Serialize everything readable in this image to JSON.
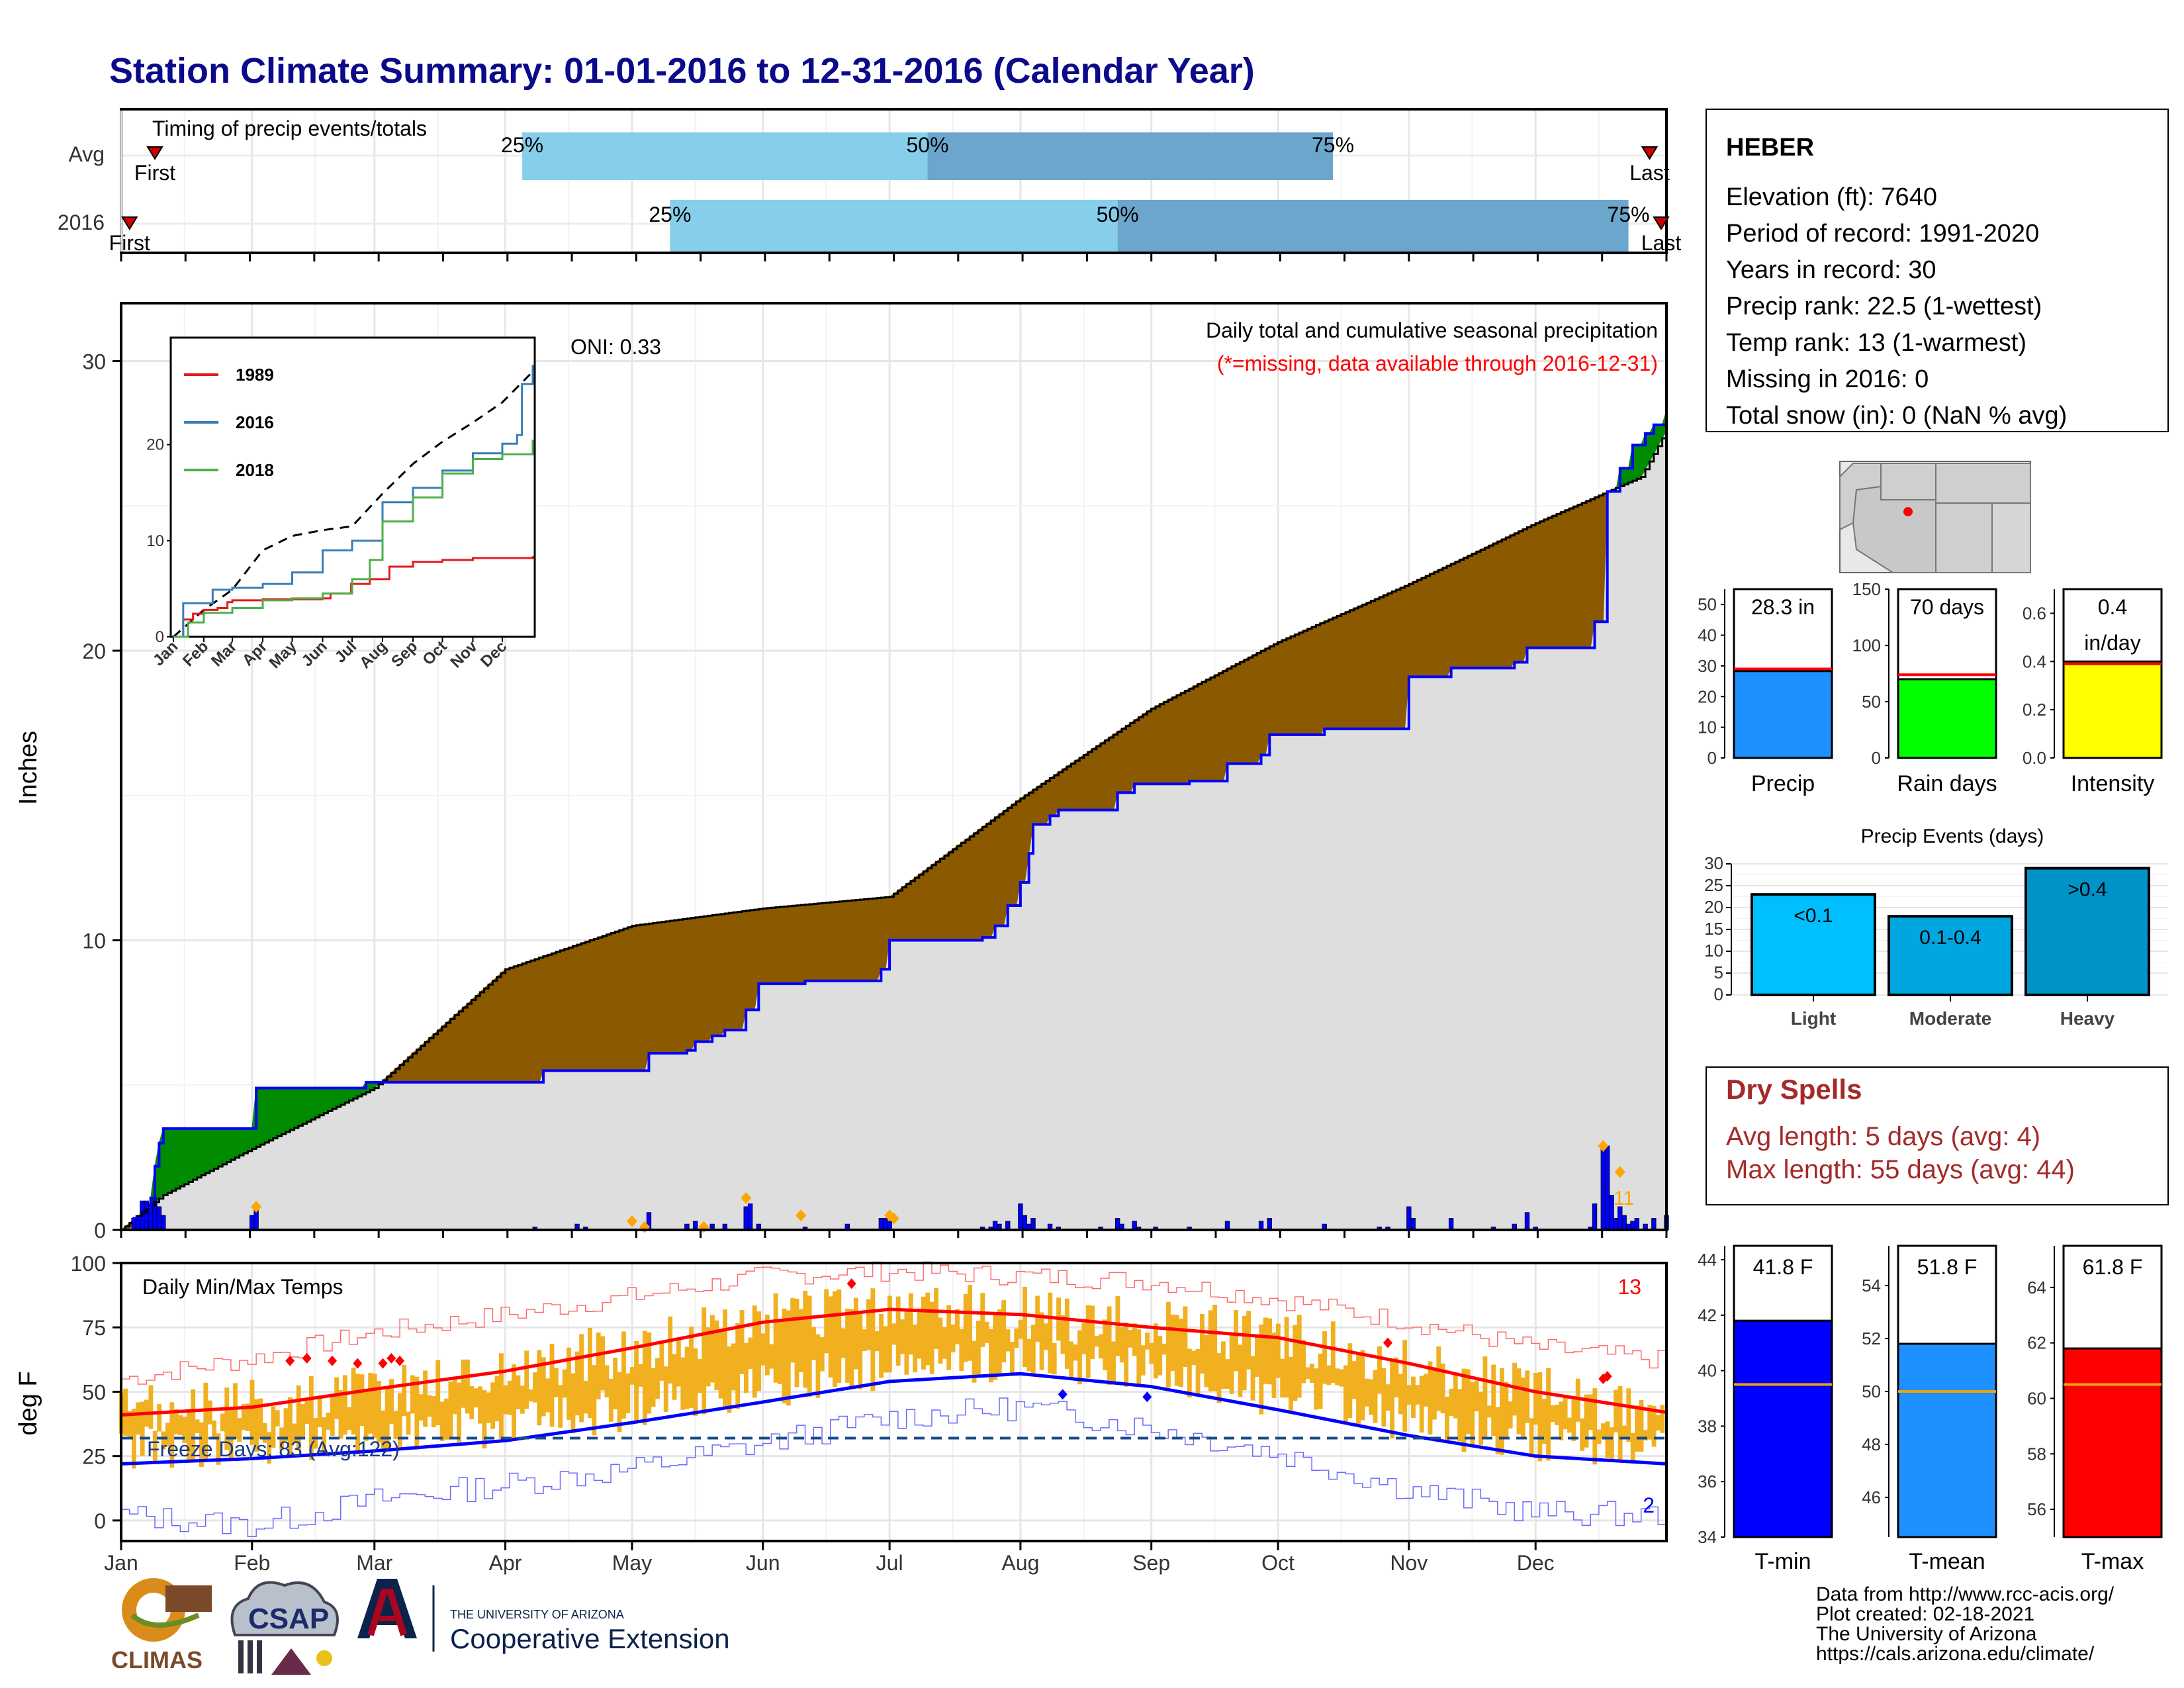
{
  "title": "Station Climate Summary: 01-01-2016 to 12-31-2016 (Calendar Year)",
  "months": [
    "Jan",
    "Feb",
    "Mar",
    "Apr",
    "May",
    "Jun",
    "Jul",
    "Aug",
    "Sep",
    "Oct",
    "Nov",
    "Dec"
  ],
  "timing": {
    "title": "Timing of precip events/totals",
    "rows": [
      {
        "label": "Avg",
        "first_label": "First",
        "last_label": "Last",
        "p25": "25%",
        "p50": "50%",
        "p75": "75%",
        "first_doy": 8,
        "p25_doy": 95,
        "p50_doy": 191,
        "p75_doy": 287,
        "last_doy": 362
      },
      {
        "label": "2016",
        "first_label": "First",
        "last_label": "Last",
        "p25": "25%",
        "p50": "50%",
        "p75": "75%",
        "first_doy": 2,
        "p25_doy": 130,
        "p50_doy": 236,
        "p75_doy": 357,
        "last_doy": 368
      }
    ]
  },
  "main": {
    "ylabel": "Inches",
    "oni": "ONI: 0.33",
    "subtitle": "Daily total and cumulative seasonal precipitation",
    "missing_note": "(*=missing, data available through 2016-12-31)",
    "ylim": [
      0,
      32
    ],
    "yticks": [
      "0",
      "10",
      "20",
      "30"
    ],
    "avg_cum": [
      [
        0,
        0
      ],
      [
        10,
        1.2
      ],
      [
        31,
        2.8
      ],
      [
        60,
        4.9
      ],
      [
        91,
        9.0
      ],
      [
        121,
        10.5
      ],
      [
        152,
        11.1
      ],
      [
        182,
        11.5
      ],
      [
        213,
        14.9
      ],
      [
        244,
        18.0
      ],
      [
        274,
        20.3
      ],
      [
        305,
        22.3
      ],
      [
        335,
        24.4
      ],
      [
        360,
        26.0
      ],
      [
        366,
        27.6
      ]
    ],
    "obs_cum": [
      [
        0,
        0
      ],
      [
        3,
        0.4
      ],
      [
        7,
        1.1
      ],
      [
        8,
        2.2
      ],
      [
        9,
        3.0
      ],
      [
        10,
        3.5
      ],
      [
        31,
        3.5
      ],
      [
        32,
        4.9
      ],
      [
        48,
        4.9
      ],
      [
        58,
        5.1
      ],
      [
        98,
        5.1
      ],
      [
        100,
        5.5
      ],
      [
        124,
        5.5
      ],
      [
        125,
        6.1
      ],
      [
        134,
        6.2
      ],
      [
        136,
        6.5
      ],
      [
        140,
        6.7
      ],
      [
        143,
        6.9
      ],
      [
        148,
        7.6
      ],
      [
        151,
        8.5
      ],
      [
        162,
        8.6
      ],
      [
        172,
        8.6
      ],
      [
        180,
        9.0
      ],
      [
        182,
        9.5
      ],
      [
        182,
        10.0
      ],
      [
        204,
        10.1
      ],
      [
        207,
        10.5
      ],
      [
        210,
        11.2
      ],
      [
        213,
        12.0
      ],
      [
        215,
        13.0
      ],
      [
        216,
        14.0
      ],
      [
        220,
        14.3
      ],
      [
        222,
        14.5
      ],
      [
        232,
        14.5
      ],
      [
        236,
        15.1
      ],
      [
        240,
        15.4
      ],
      [
        253,
        15.5
      ],
      [
        262,
        16.1
      ],
      [
        270,
        16.4
      ],
      [
        272,
        17.1
      ],
      [
        277,
        17.1
      ],
      [
        285,
        17.3
      ],
      [
        298,
        17.3
      ],
      [
        305,
        19.1
      ],
      [
        315,
        19.4
      ],
      [
        330,
        19.6
      ],
      [
        333,
        20.1
      ],
      [
        348,
        20.1
      ],
      [
        349,
        21.0
      ],
      [
        352,
        25.5
      ],
      [
        355,
        26.3
      ],
      [
        358,
        27.1
      ],
      [
        361,
        27.5
      ],
      [
        363,
        27.8
      ],
      [
        366,
        28.3
      ]
    ],
    "daily_bars": [
      [
        3,
        0.4
      ],
      [
        4,
        0.5
      ],
      [
        5,
        1.0
      ],
      [
        6,
        1.0
      ],
      [
        7,
        0.9
      ],
      [
        8,
        1.1
      ],
      [
        9,
        0.8
      ],
      [
        10,
        0.5
      ],
      [
        31,
        0.5
      ],
      [
        32,
        0.7
      ],
      [
        98,
        0.1
      ],
      [
        108,
        0.2
      ],
      [
        110,
        0.1
      ],
      [
        124,
        0.2
      ],
      [
        125,
        0.6
      ],
      [
        134,
        0.2
      ],
      [
        136,
        0.3
      ],
      [
        140,
        0.2
      ],
      [
        143,
        0.2
      ],
      [
        148,
        0.8
      ],
      [
        149,
        0.9
      ],
      [
        151,
        0.2
      ],
      [
        162,
        0.1
      ],
      [
        172,
        0.2
      ],
      [
        180,
        0.4
      ],
      [
        181,
        0.4
      ],
      [
        182,
        0.3
      ],
      [
        204,
        0.1
      ],
      [
        206,
        0.1
      ],
      [
        207,
        0.3
      ],
      [
        208,
        0.2
      ],
      [
        210,
        0.3
      ],
      [
        213,
        0.9
      ],
      [
        214,
        0.5
      ],
      [
        215,
        0.2
      ],
      [
        216,
        0.4
      ],
      [
        220,
        0.2
      ],
      [
        222,
        0.1
      ],
      [
        232,
        0.1
      ],
      [
        236,
        0.4
      ],
      [
        237,
        0.2
      ],
      [
        240,
        0.3
      ],
      [
        241,
        0.1
      ],
      [
        245,
        0.1
      ],
      [
        253,
        0.1
      ],
      [
        262,
        0.3
      ],
      [
        270,
        0.3
      ],
      [
        272,
        0.4
      ],
      [
        285,
        0.2
      ],
      [
        298,
        0.1
      ],
      [
        300,
        0.1
      ],
      [
        305,
        0.8
      ],
      [
        306,
        0.4
      ],
      [
        315,
        0.4
      ],
      [
        325,
        0.1
      ],
      [
        330,
        0.2
      ],
      [
        333,
        0.6
      ],
      [
        335,
        0.1
      ],
      [
        348,
        0.1
      ],
      [
        349,
        0.9
      ],
      [
        351,
        2.8
      ],
      [
        352,
        2.9
      ],
      [
        353,
        1.2
      ],
      [
        354,
        0.4
      ],
      [
        355,
        0.8
      ],
      [
        356,
        0.5
      ],
      [
        357,
        0.2
      ],
      [
        358,
        0.3
      ],
      [
        359,
        0.4
      ],
      [
        361,
        0.2
      ],
      [
        363,
        0.4
      ],
      [
        366,
        0.5
      ]
    ],
    "record_diamonds": [
      [
        32,
        0.8
      ],
      [
        121,
        0.3
      ],
      [
        124,
        0.1
      ],
      [
        138,
        0.1
      ],
      [
        148,
        1.1
      ],
      [
        161,
        0.5
      ],
      [
        182,
        0.5
      ],
      [
        183,
        0.4
      ],
      [
        351,
        2.9
      ],
      [
        355,
        2.0
      ]
    ],
    "record_count": "11"
  },
  "inset": {
    "ylim": [
      0,
      31
    ],
    "yticks": [
      "0",
      "10",
      "20"
    ],
    "months": [
      "Jan",
      "Feb",
      "Mar",
      "Apr",
      "May",
      "Jun",
      "Jul",
      "Aug",
      "Sep",
      "Oct",
      "Nov",
      "Dec"
    ],
    "series": [
      {
        "name": "1989",
        "color": "#e41a1c",
        "points": [
          [
            0,
            0
          ],
          [
            10,
            1.8
          ],
          [
            20,
            2.4
          ],
          [
            31,
            2.8
          ],
          [
            45,
            3.0
          ],
          [
            55,
            3.6
          ],
          [
            60,
            3.8
          ],
          [
            91,
            3.9
          ],
          [
            121,
            3.9
          ],
          [
            152,
            4.0
          ],
          [
            160,
            4.5
          ],
          [
            181,
            5.5
          ],
          [
            200,
            6.0
          ],
          [
            220,
            7.3
          ],
          [
            244,
            7.8
          ],
          [
            274,
            8.0
          ],
          [
            305,
            8.2
          ],
          [
            335,
            8.2
          ],
          [
            366,
            8.4
          ]
        ]
      },
      {
        "name": "2016",
        "color": "#377eb8",
        "points": [
          [
            0,
            0
          ],
          [
            10,
            3.5
          ],
          [
            31,
            3.5
          ],
          [
            40,
            4.9
          ],
          [
            60,
            5.1
          ],
          [
            91,
            5.5
          ],
          [
            121,
            6.7
          ],
          [
            152,
            9.0
          ],
          [
            182,
            10.0
          ],
          [
            213,
            14.0
          ],
          [
            244,
            15.5
          ],
          [
            274,
            17.3
          ],
          [
            305,
            19.1
          ],
          [
            335,
            20.1
          ],
          [
            350,
            21.0
          ],
          [
            355,
            26.3
          ],
          [
            366,
            28.3
          ]
        ]
      },
      {
        "name": "2018",
        "color": "#4daf4a",
        "points": [
          [
            0,
            0
          ],
          [
            15,
            1.5
          ],
          [
            31,
            2.5
          ],
          [
            60,
            3.0
          ],
          [
            91,
            3.8
          ],
          [
            121,
            4.0
          ],
          [
            152,
            4.5
          ],
          [
            182,
            6.0
          ],
          [
            200,
            8.0
          ],
          [
            213,
            12.0
          ],
          [
            244,
            14.5
          ],
          [
            274,
            17.0
          ],
          [
            305,
            18.5
          ],
          [
            335,
            19.0
          ],
          [
            366,
            20.5
          ]
        ]
      }
    ],
    "avg_dashed": [
      [
        0,
        0
      ],
      [
        31,
        2.8
      ],
      [
        60,
        4.9
      ],
      [
        91,
        9.0
      ],
      [
        121,
        10.5
      ],
      [
        152,
        11.1
      ],
      [
        182,
        11.5
      ],
      [
        213,
        14.9
      ],
      [
        244,
        18.0
      ],
      [
        274,
        20.3
      ],
      [
        305,
        22.3
      ],
      [
        335,
        24.4
      ],
      [
        366,
        27.6
      ]
    ]
  },
  "temps": {
    "ylabel": "deg F",
    "title": "Daily Min/Max Temps",
    "freeze_label": "Freeze Days: 83 (Avg:122)",
    "high_records": "13",
    "low_records": "2",
    "ylim": [
      -8,
      100
    ],
    "yticks": [
      "0",
      "25",
      "50",
      "75",
      "100"
    ],
    "freeze_line": 32,
    "avg_max": [
      [
        0,
        41
      ],
      [
        31,
        44
      ],
      [
        60,
        51
      ],
      [
        91,
        58
      ],
      [
        121,
        67
      ],
      [
        152,
        77
      ],
      [
        182,
        82
      ],
      [
        213,
        80
      ],
      [
        244,
        75
      ],
      [
        274,
        71
      ],
      [
        305,
        61
      ],
      [
        335,
        50
      ],
      [
        366,
        42
      ]
    ],
    "avg_min": [
      [
        0,
        22
      ],
      [
        31,
        24
      ],
      [
        60,
        27
      ],
      [
        91,
        31
      ],
      [
        121,
        38
      ],
      [
        152,
        46
      ],
      [
        182,
        54
      ],
      [
        213,
        57
      ],
      [
        244,
        52
      ],
      [
        274,
        43
      ],
      [
        305,
        33
      ],
      [
        335,
        25
      ],
      [
        366,
        22
      ]
    ],
    "rec_max": [
      [
        0,
        55
      ],
      [
        31,
        63
      ],
      [
        60,
        73
      ],
      [
        91,
        80
      ],
      [
        121,
        87
      ],
      [
        152,
        95
      ],
      [
        182,
        97
      ],
      [
        213,
        95
      ],
      [
        244,
        93
      ],
      [
        274,
        86
      ],
      [
        305,
        77
      ],
      [
        335,
        67
      ],
      [
        366,
        62
      ]
    ],
    "rec_min": [
      [
        0,
        2
      ],
      [
        31,
        -2
      ],
      [
        60,
        8
      ],
      [
        91,
        14
      ],
      [
        121,
        20
      ],
      [
        152,
        30
      ],
      [
        182,
        40
      ],
      [
        213,
        44
      ],
      [
        244,
        36
      ],
      [
        274,
        26
      ],
      [
        305,
        12
      ],
      [
        335,
        3
      ],
      [
        366,
        2
      ]
    ]
  },
  "station": {
    "name": "HEBER",
    "lines": [
      "Elevation (ft): 7640",
      "Period of record: 1991-2020",
      "Years in record: 30",
      "Precip rank: 22.5 (1-wettest)",
      "Temp rank: 13 (1-warmest)",
      "Missing in 2016: 0",
      "Total snow (in): 0 (NaN % avg)"
    ]
  },
  "mini_bars": [
    {
      "label": "Precip",
      "value_text": "28.3 in",
      "value": 28.3,
      "avg": 29,
      "ymax": 55,
      "yticks": [
        0,
        10,
        20,
        30,
        40,
        50
      ],
      "color": "#1e90ff"
    },
    {
      "label": "Rain days",
      "value_text": "70 days",
      "value": 70,
      "avg": 74,
      "ymax": 150,
      "yticks": [
        0,
        50,
        100,
        150
      ],
      "color": "#00ff00"
    },
    {
      "label": "Intensity",
      "value_text": "0.4",
      "value_text2": "in/day",
      "value": 0.4,
      "avg": 0.39,
      "ymax": 0.7,
      "yticks": [
        0.0,
        0.2,
        0.4,
        0.6
      ],
      "color": "#ffff00"
    }
  ],
  "precip_events": {
    "title": "Precip Events (days)",
    "categories": [
      "Light",
      "Moderate",
      "Heavy"
    ],
    "labels": [
      "<0.1",
      "0.1-0.4",
      ">0.4"
    ],
    "values": [
      23,
      18,
      29
    ],
    "colors": [
      "#00bfff",
      "#00a6e0",
      "#0093c8"
    ],
    "ymax": 30,
    "yticks": [
      0,
      5,
      10,
      15,
      20,
      25,
      30
    ]
  },
  "dry_spells": {
    "title": "Dry Spells",
    "avg_line": "Avg length: 5 days (avg: 4)",
    "max_line": "Max length: 55 days (avg: 44)"
  },
  "temp_bars": [
    {
      "label": "T-min",
      "value_text": "41.8 F",
      "value": 41.8,
      "avg": 39.5,
      "ymin": 34,
      "ymax": 44.5,
      "yticks": [
        34,
        36,
        38,
        40,
        42,
        44
      ],
      "color": "#0000ff"
    },
    {
      "label": "T-mean",
      "value_text": "51.8 F",
      "value": 51.8,
      "avg": 50.0,
      "ymin": 44.5,
      "ymax": 55.5,
      "yticks": [
        46,
        48,
        50,
        52,
        54
      ],
      "color": "#1e90ff"
    },
    {
      "label": "T-max",
      "value_text": "61.8 F",
      "value": 61.8,
      "avg": 60.5,
      "ymin": 55,
      "ymax": 65.5,
      "yticks": [
        56,
        58,
        60,
        62,
        64
      ],
      "color": "#ff0000"
    }
  ],
  "footer": {
    "lines": [
      "Data from http://www.rcc-acis.org/",
      "Plot created: 02-18-2021",
      "The University of Arizona",
      "https://cals.arizona.edu/climate/"
    ],
    "climas": "CLIMAS",
    "csap": "CSAP",
    "ua_top": "THE UNIVERSITY OF ARIZONA",
    "ua_bottom": "Cooperative Extension"
  }
}
